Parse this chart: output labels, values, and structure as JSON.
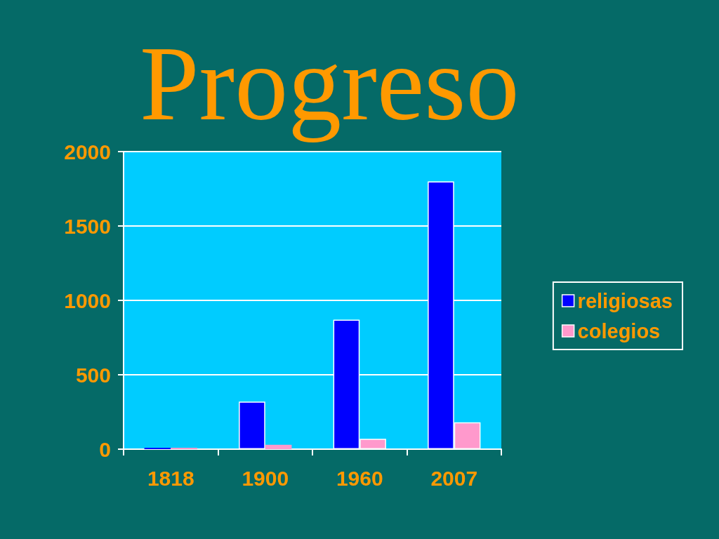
{
  "chart_data": {
    "type": "bar",
    "title": "Progreso",
    "categories": [
      "1818",
      "1900",
      "1960",
      "2007"
    ],
    "series": [
      {
        "name": "religiosas",
        "color": "#0000ff",
        "values": [
          10,
          320,
          870,
          1800
        ]
      },
      {
        "name": "colegios",
        "color": "#ff99cc",
        "values": [
          0,
          30,
          70,
          180
        ]
      }
    ],
    "ylim": [
      0,
      2000
    ],
    "yticks": [
      0,
      500,
      1000,
      1500,
      2000
    ],
    "grid": "y",
    "legend": "right"
  }
}
